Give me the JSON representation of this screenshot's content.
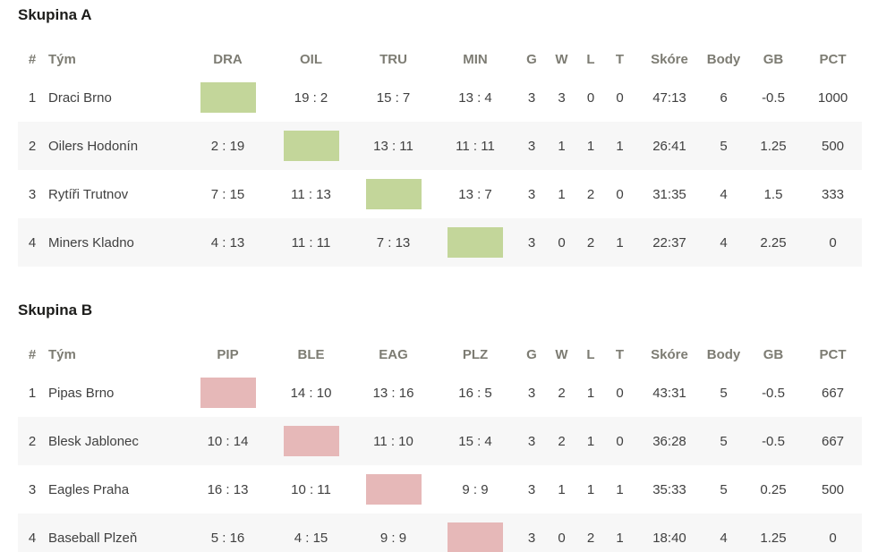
{
  "colors": {
    "group_a_self_cell": "#c3d69a",
    "group_b_self_cell": "#e6b8b8",
    "row_stripe": "#f7f7f7",
    "header_text": "#7d7c73",
    "body_text": "#404040",
    "title_text": "#1d1d1b"
  },
  "groups": [
    {
      "title": "Skupina A",
      "self_color": "#c3d69a",
      "columns": [
        {
          "key": "rank",
          "label": "#"
        },
        {
          "key": "team",
          "label": "Tým"
        },
        {
          "key": "dra",
          "label": "DRA"
        },
        {
          "key": "oil",
          "label": "OIL"
        },
        {
          "key": "tru",
          "label": "TRU"
        },
        {
          "key": "min",
          "label": "MIN"
        },
        {
          "key": "games",
          "label": "G"
        },
        {
          "key": "wins",
          "label": "W"
        },
        {
          "key": "losses",
          "label": "L"
        },
        {
          "key": "ties",
          "label": "T"
        },
        {
          "key": "score",
          "label": "Skóre"
        },
        {
          "key": "points",
          "label": "Body"
        },
        {
          "key": "gb",
          "label": "GB"
        },
        {
          "key": "pct",
          "label": "PCT"
        }
      ],
      "rows": [
        {
          "rank": "1",
          "team": "Draci Brno",
          "results": [
            null,
            "19 : 2",
            "15 : 7",
            "13 : 4"
          ],
          "stats": [
            "3",
            "3",
            "0",
            "0",
            "47:13",
            "6",
            "-0.5",
            "1000"
          ]
        },
        {
          "rank": "2",
          "team": "Oilers Hodonín",
          "results": [
            "2 : 19",
            null,
            "13 : 11",
            "11 : 11"
          ],
          "stats": [
            "3",
            "1",
            "1",
            "1",
            "26:41",
            "5",
            "1.25",
            "500"
          ]
        },
        {
          "rank": "3",
          "team": "Rytíři Trutnov",
          "results": [
            "7 : 15",
            "11 : 13",
            null,
            "13 : 7"
          ],
          "stats": [
            "3",
            "1",
            "2",
            "0",
            "31:35",
            "4",
            "1.5",
            "333"
          ]
        },
        {
          "rank": "4",
          "team": "Miners Kladno",
          "results": [
            "4 : 13",
            "11 : 11",
            "7 : 13",
            null
          ],
          "stats": [
            "3",
            "0",
            "2",
            "1",
            "22:37",
            "4",
            "2.25",
            "0"
          ]
        }
      ]
    },
    {
      "title": "Skupina B",
      "self_color": "#e6b8b8",
      "columns": [
        {
          "key": "rank",
          "label": "#"
        },
        {
          "key": "team",
          "label": "Tým"
        },
        {
          "key": "pip",
          "label": "PIP"
        },
        {
          "key": "ble",
          "label": "BLE"
        },
        {
          "key": "eag",
          "label": "EAG"
        },
        {
          "key": "plz",
          "label": "PLZ"
        },
        {
          "key": "games",
          "label": "G"
        },
        {
          "key": "wins",
          "label": "W"
        },
        {
          "key": "losses",
          "label": "L"
        },
        {
          "key": "ties",
          "label": "T"
        },
        {
          "key": "score",
          "label": "Skóre"
        },
        {
          "key": "points",
          "label": "Body"
        },
        {
          "key": "gb",
          "label": "GB"
        },
        {
          "key": "pct",
          "label": "PCT"
        }
      ],
      "rows": [
        {
          "rank": "1",
          "team": "Pipas Brno",
          "results": [
            null,
            "14 : 10",
            "13 : 16",
            "16 : 5"
          ],
          "stats": [
            "3",
            "2",
            "1",
            "0",
            "43:31",
            "5",
            "-0.5",
            "667"
          ]
        },
        {
          "rank": "2",
          "team": "Blesk Jablonec",
          "results": [
            "10 : 14",
            null,
            "11 : 10",
            "15 : 4"
          ],
          "stats": [
            "3",
            "2",
            "1",
            "0",
            "36:28",
            "5",
            "-0.5",
            "667"
          ]
        },
        {
          "rank": "3",
          "team": "Eagles Praha",
          "results": [
            "16 : 13",
            "10 : 11",
            null,
            "9 : 9"
          ],
          "stats": [
            "3",
            "1",
            "1",
            "1",
            "35:33",
            "5",
            "0.25",
            "500"
          ]
        },
        {
          "rank": "4",
          "team": "Baseball Plzeň",
          "results": [
            "5 : 16",
            "4 : 15",
            "9 : 9",
            null
          ],
          "stats": [
            "3",
            "0",
            "2",
            "1",
            "18:40",
            "4",
            "1.25",
            "0"
          ]
        }
      ]
    }
  ]
}
